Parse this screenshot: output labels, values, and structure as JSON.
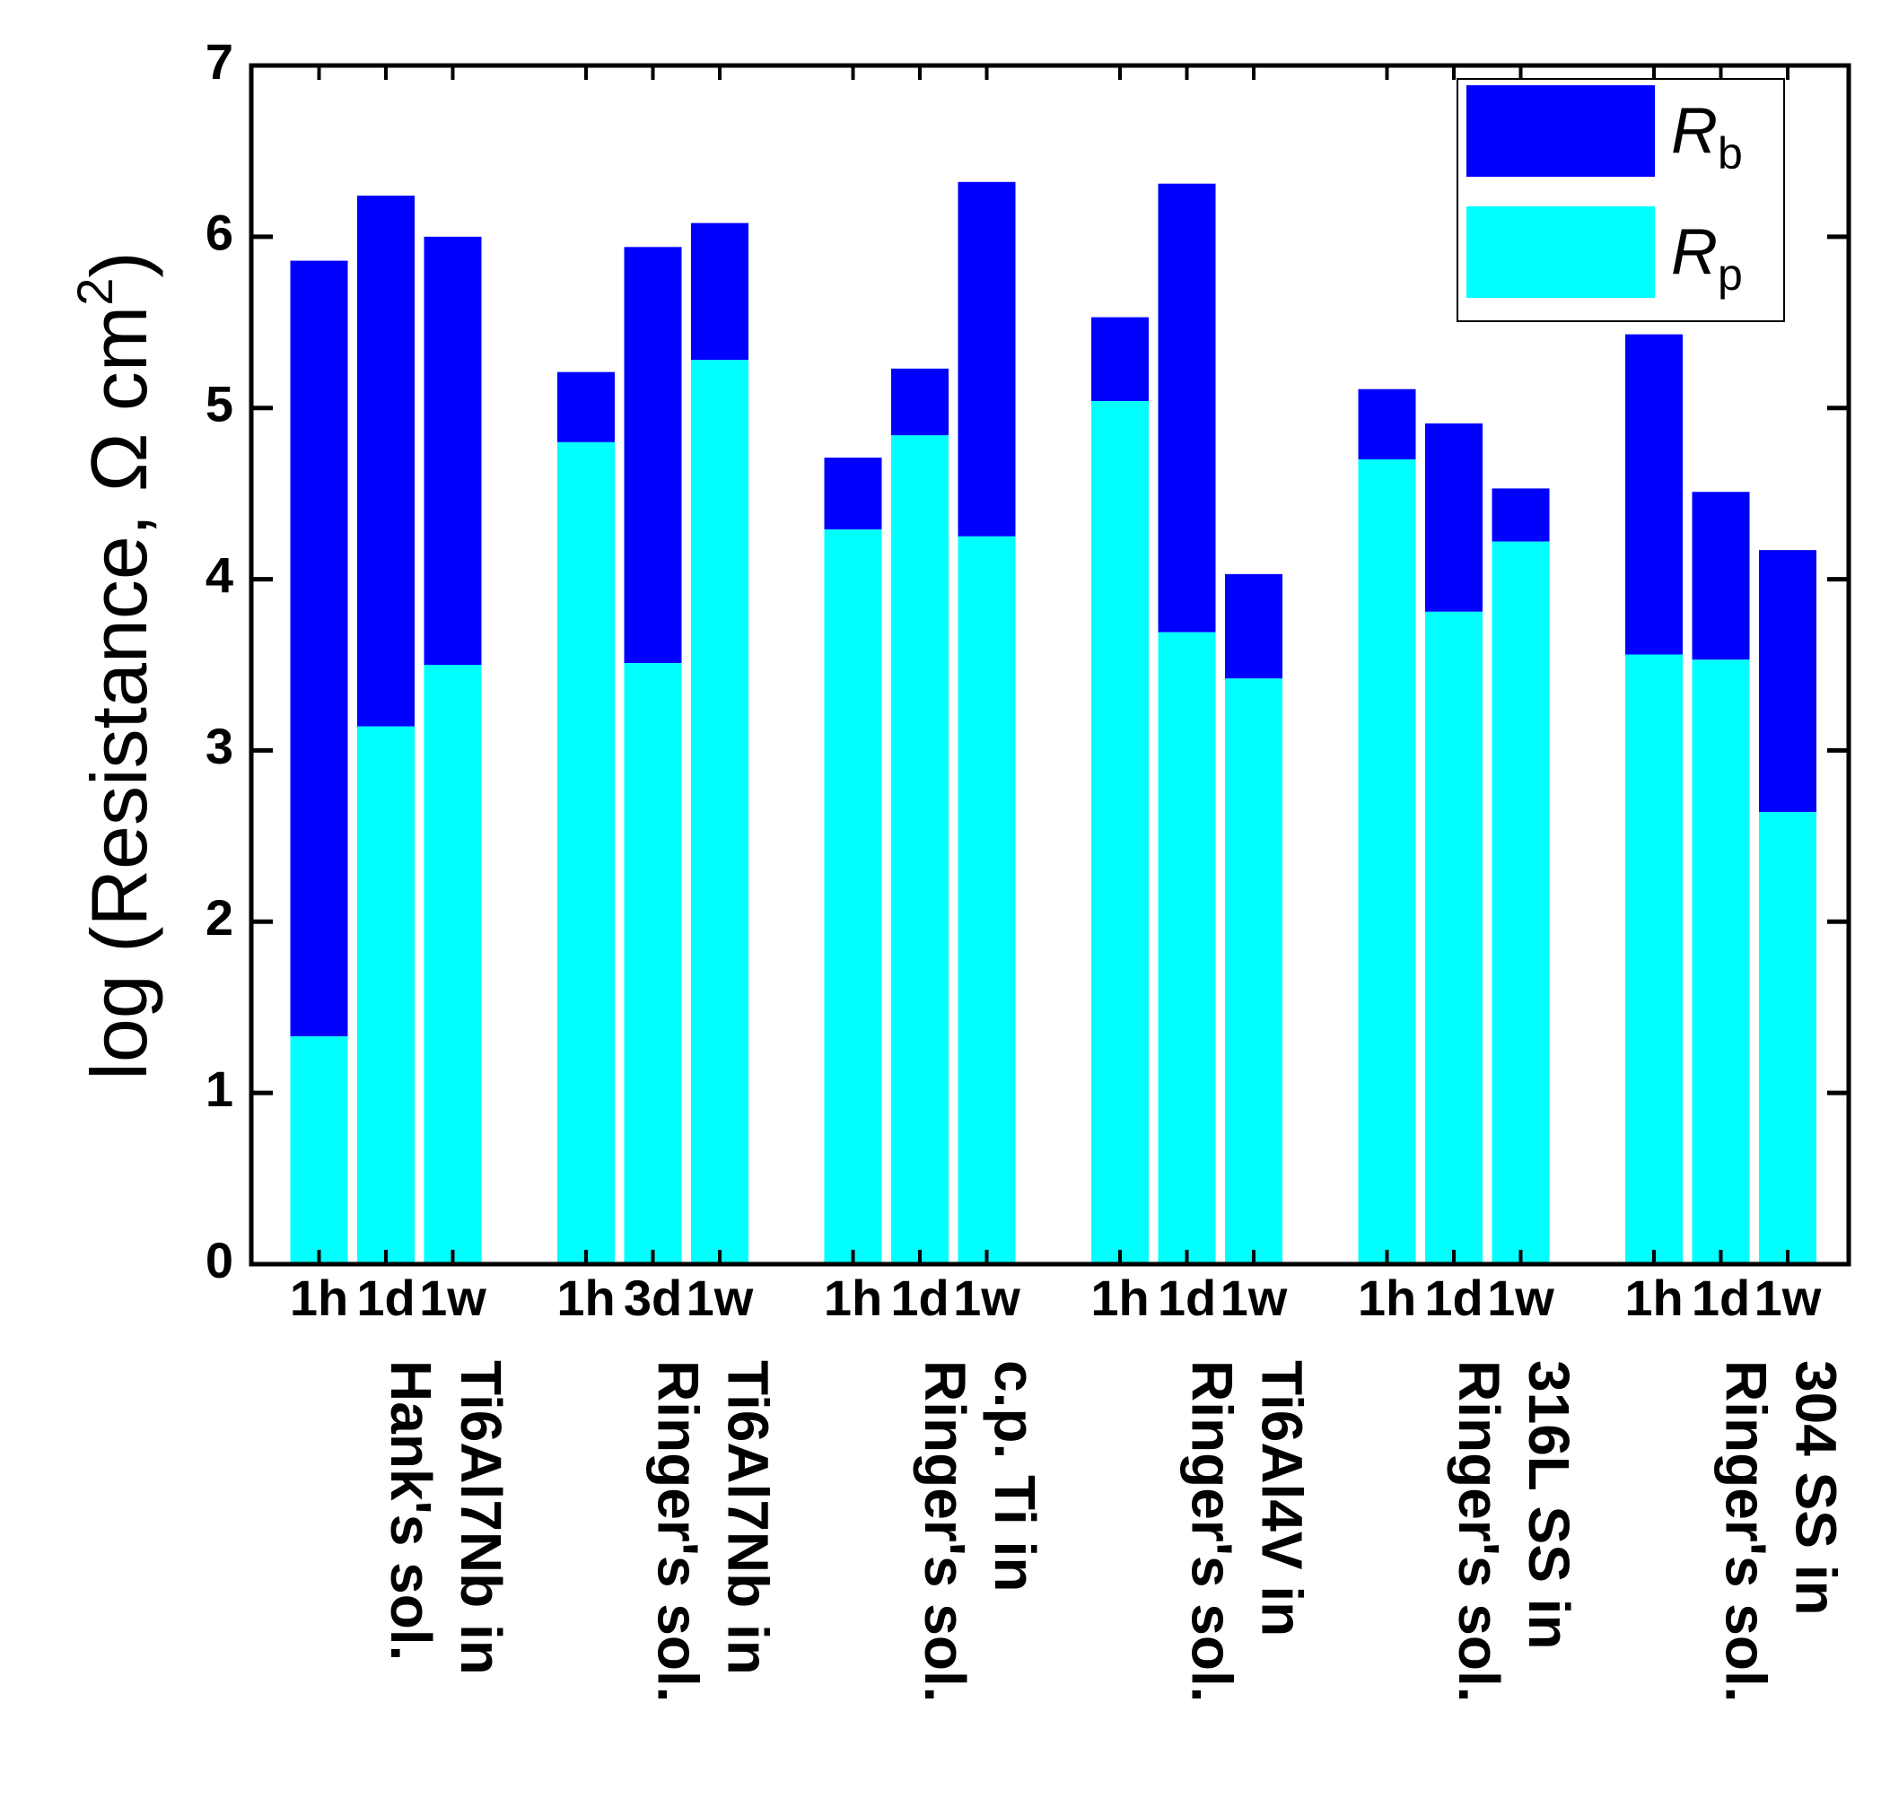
{
  "chart_data": {
    "type": "bar",
    "stacked": true,
    "ylabel": "log (Resistance, Ω cm²)",
    "ylabel_parts": {
      "main": "log (Resistance,  Ω cm",
      "sup": "2",
      "close": ")"
    },
    "ylim": [
      0,
      7
    ],
    "yticks": [
      "0",
      "1",
      "2",
      "3",
      "4",
      "5",
      "6",
      "7"
    ],
    "legend": {
      "position": "top-right",
      "entries": [
        {
          "name": "Rb",
          "main": "R",
          "sub": "b",
          "color": "#0000FF"
        },
        {
          "name": "Rp",
          "main": "R",
          "sub": "p",
          "color": "#00FFFF"
        }
      ]
    },
    "groups": [
      {
        "label_lines": [
          "Ti6Al7Nb in",
          "Hank's sol."
        ],
        "categories": [
          "1h",
          "1d",
          "1w"
        ],
        "Rp": [
          1.33,
          3.14,
          3.5
        ],
        "total": [
          5.86,
          6.24,
          6.0
        ]
      },
      {
        "label_lines": [
          "Ti6Al7Nb in",
          "Ringer's sol."
        ],
        "categories": [
          "1h",
          "3d",
          "1w"
        ],
        "Rp": [
          4.8,
          3.51,
          5.28
        ],
        "total": [
          5.21,
          5.94,
          6.08
        ]
      },
      {
        "label_lines": [
          "c.p. Ti in",
          "Ringer's sol."
        ],
        "categories": [
          "1h",
          "1d",
          "1w"
        ],
        "Rp": [
          4.29,
          4.84,
          4.25
        ],
        "total": [
          4.71,
          5.23,
          6.32
        ]
      },
      {
        "label_lines": [
          "Ti6Al4V in",
          "Ringer's sol."
        ],
        "categories": [
          "1h",
          "1d",
          "1w"
        ],
        "Rp": [
          5.04,
          3.69,
          3.42
        ],
        "total": [
          5.53,
          6.31,
          4.03
        ]
      },
      {
        "label_lines": [
          "316L SS in",
          "Ringer's sol."
        ],
        "categories": [
          "1h",
          "1d",
          "1w"
        ],
        "Rp": [
          4.7,
          3.81,
          4.22
        ],
        "total": [
          5.11,
          4.91,
          4.53
        ]
      },
      {
        "label_lines": [
          "304 SS in",
          "Ringer's sol."
        ],
        "categories": [
          "1h",
          "1d",
          "1w"
        ],
        "Rp": [
          3.56,
          3.53,
          2.64
        ],
        "total": [
          5.43,
          4.51,
          4.17
        ]
      }
    ]
  }
}
